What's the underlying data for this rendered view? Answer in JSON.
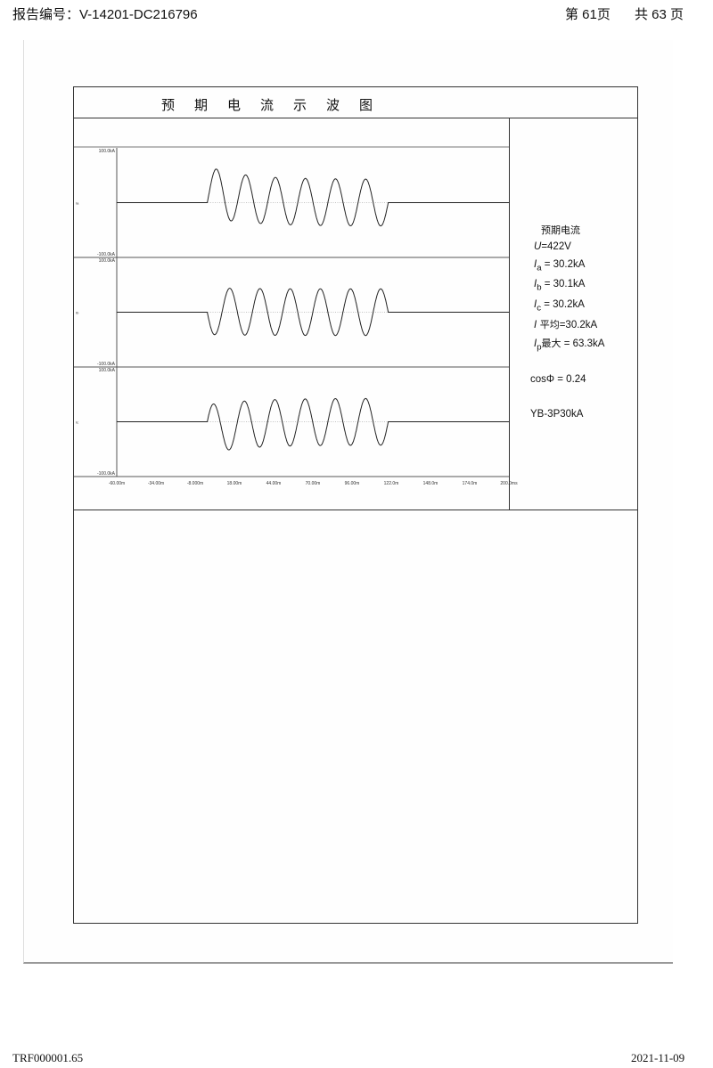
{
  "header": {
    "report_no": "报告编号：V-14201-DC216796",
    "page": "第 61页",
    "total": "共 63 页"
  },
  "footer": {
    "form_id": "TRF000001.65",
    "date": "2021-11-09"
  },
  "title": "预期电流示波图",
  "info": {
    "heading": "预期电流",
    "u_label": "U",
    "u_value": "=422V",
    "ia_label": "I",
    "ia_sub": "a",
    "ia_value": " = 30.2kA",
    "ib_label": "I",
    "ib_sub": "b",
    "ib_value": " = 30.1kA",
    "ic_label": "I",
    "ic_sub": "c",
    "ic_value": " = 30.2kA",
    "iavg_label": "I",
    "iavg_cn": " 平均",
    "iavg_value": "=30.2kA",
    "ip_label": "I",
    "ip_sub": "p",
    "ip_cn": "最大",
    "ip_value": "  = 63.3kA",
    "cos": "cosΦ = 0.24",
    "model": "YB-3P30kA"
  },
  "chart_data": {
    "type": "line",
    "x_unit": "ms",
    "xlim": [
      -60,
      200
    ],
    "x_ticks": [
      "-60.00m",
      "-34.00m",
      "-8.000m",
      "18.00m",
      "44.00m",
      "70.00m",
      "96.00m",
      "122.0m",
      "148.0m",
      "174.0m",
      "200.0ms"
    ],
    "panels": [
      {
        "label": "Ia",
        "ymax_label": "100.0kA",
        "ymin_label": "-100.0kA",
        "ylim": [
          -100,
          100
        ],
        "start_ms": 0,
        "end_ms": 120,
        "freq_hz": 50,
        "ac_peak_kA": 42.7,
        "dc_offset_kA": 20,
        "first_sign": 1
      },
      {
        "label": "Ib",
        "ymax_label": "100.0kA",
        "ymin_label": "-100.0kA",
        "ylim": [
          -100,
          100
        ],
        "start_ms": 0,
        "end_ms": 120,
        "freq_hz": 50,
        "ac_peak_kA": 42.6,
        "dc_offset_kA": 2,
        "first_sign": -1
      },
      {
        "label": "Ic",
        "ymax_label": "100.0kA",
        "ymin_label": "-100.0kA",
        "ylim": [
          -100,
          100
        ],
        "start_ms": 0,
        "end_ms": 120,
        "freq_hz": 50,
        "ac_peak_kA": 42.7,
        "dc_offset_kA": -14,
        "first_sign": 1
      }
    ]
  }
}
